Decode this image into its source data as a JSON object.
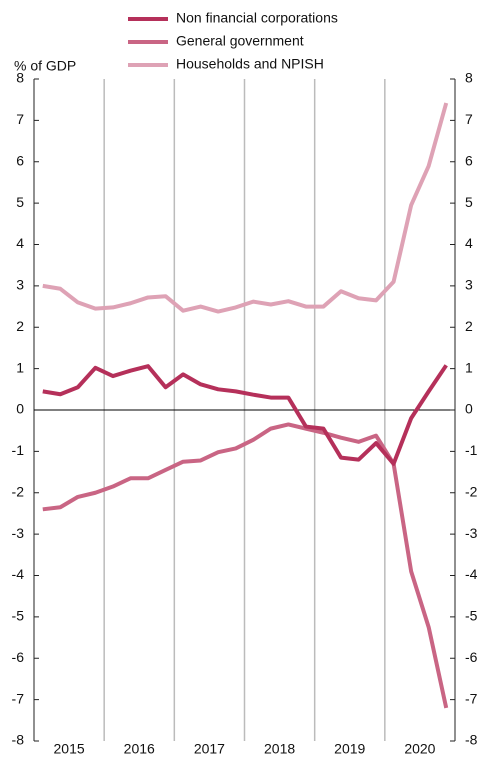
{
  "chart_data": {
    "type": "line",
    "y_label": "% of GDP",
    "years": [
      "2015",
      "2016",
      "2017",
      "2018",
      "2019",
      "2020"
    ],
    "points_per_year": 4,
    "ylim": [
      -8,
      8
    ],
    "yticks": [
      -8,
      -7,
      -6,
      -5,
      -4,
      -3,
      -2,
      -1,
      0,
      1,
      2,
      3,
      4,
      5,
      6,
      7,
      8
    ],
    "y2lim": [
      -8,
      8
    ],
    "y2ticks": [
      -8,
      -7,
      -6,
      -5,
      -4,
      -3,
      -2,
      -1,
      0,
      1,
      2,
      3,
      4,
      5,
      6,
      7,
      8
    ],
    "legend": "top",
    "series": [
      {
        "name": "Non financial corporations",
        "color": "#b5305a",
        "values": [
          0.45,
          0.38,
          0.55,
          1.02,
          0.82,
          0.95,
          1.06,
          0.55,
          0.86,
          0.62,
          0.5,
          0.45,
          0.37,
          0.3,
          0.3,
          -0.4,
          -0.45,
          -1.15,
          -1.2,
          -0.8,
          -1.3,
          -0.2,
          0.45,
          1.08
        ]
      },
      {
        "name": "General government",
        "color": "#c96584",
        "values": [
          -2.4,
          -2.35,
          -2.1,
          -2.0,
          -1.85,
          -1.65,
          -1.65,
          -1.45,
          -1.25,
          -1.22,
          -1.02,
          -0.93,
          -0.72,
          -0.45,
          -0.35,
          -0.45,
          -0.55,
          -0.67,
          -0.77,
          -0.62,
          -1.3,
          -3.9,
          -5.25,
          -7.2
        ]
      },
      {
        "name": "Households and NPISH",
        "color": "#dea2b5",
        "values": [
          3.0,
          2.93,
          2.6,
          2.45,
          2.48,
          2.58,
          2.72,
          2.75,
          2.4,
          2.5,
          2.38,
          2.48,
          2.62,
          2.55,
          2.63,
          2.5,
          2.5,
          2.87,
          2.7,
          2.65,
          3.1,
          4.95,
          5.9,
          7.42
        ]
      }
    ]
  }
}
